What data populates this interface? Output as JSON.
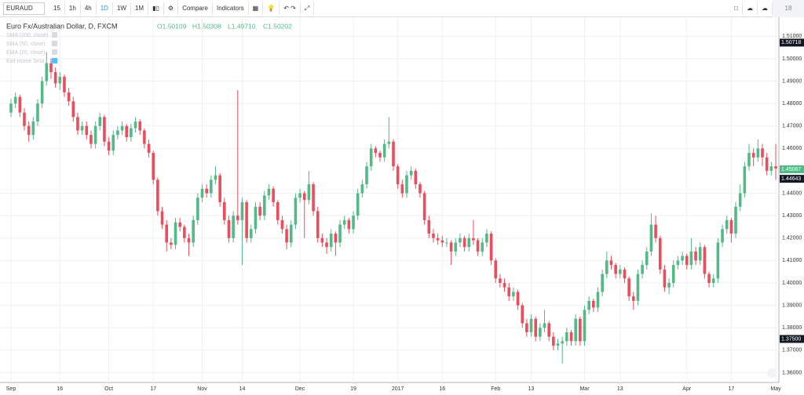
{
  "toolbar": {
    "symbol": "EURAUD",
    "intervals": [
      "15",
      "1h",
      "4h",
      "1D",
      "1W",
      "1M"
    ],
    "active_interval": "1D",
    "buttons": [
      "Compare",
      "Indicators"
    ],
    "right_text": "18"
  },
  "legend": {
    "title": "Euro Fx/Australian Dollar, D, FXCM",
    "ohlc": [
      "O1.50109",
      "H1.50308",
      "L1.49710",
      "C1.50202"
    ],
    "studies": [
      "SMA (200, close)",
      "SMA (50, close)",
      "EMA (20, close)",
      "Exit Home Sma"
    ]
  },
  "chart_data": {
    "type": "candlestick",
    "up_color": "#53b987",
    "down_color": "#eb4d5c",
    "grid": true,
    "ylim": [
      1.3556,
      1.5185
    ],
    "yticks": [
      {
        "value": 1.51,
        "label": "1.51000"
      },
      {
        "value": 1.5,
        "label": "1.50000"
      },
      {
        "value": 1.49,
        "label": "1.49000"
      },
      {
        "value": 1.48,
        "label": "1.48000"
      },
      {
        "value": 1.47,
        "label": "1.47000"
      },
      {
        "value": 1.46,
        "label": "1.46000"
      },
      {
        "value": 1.44,
        "label": "1.44000"
      },
      {
        "value": 1.43,
        "label": "1.43000"
      },
      {
        "value": 1.42,
        "label": "1.42000"
      },
      {
        "value": 1.41,
        "label": "1.41000"
      },
      {
        "value": 1.4,
        "label": "1.40000"
      },
      {
        "value": 1.39,
        "label": "1.39000"
      },
      {
        "value": 1.38,
        "label": "1.38000"
      },
      {
        "value": 1.37,
        "label": "1.37000"
      },
      {
        "value": 1.36,
        "label": "1.36000"
      }
    ],
    "price_markers": [
      {
        "value": 1.50718,
        "color": "#131722"
      },
      {
        "value": 1.45067,
        "color": "#53b987"
      },
      {
        "value": 1.44643,
        "color": "#131722"
      },
      {
        "value": 1.375,
        "label": "1.37500",
        "color": "#131722"
      }
    ],
    "categories": [
      "Sep",
      null,
      null,
      null,
      null,
      null,
      null,
      null,
      null,
      null,
      null,
      "16",
      null,
      null,
      null,
      null,
      null,
      null,
      null,
      null,
      null,
      null,
      "Oct",
      null,
      null,
      null,
      null,
      null,
      null,
      null,
      null,
      null,
      "17",
      null,
      null,
      null,
      null,
      null,
      null,
      null,
      null,
      null,
      null,
      "Nov",
      null,
      null,
      null,
      null,
      null,
      null,
      null,
      null,
      "14",
      null,
      null,
      null,
      null,
      null,
      null,
      null,
      null,
      null,
      null,
      null,
      null,
      "Dec",
      null,
      null,
      null,
      null,
      null,
      null,
      null,
      null,
      null,
      null,
      null,
      "19",
      null,
      null,
      null,
      null,
      null,
      null,
      null,
      null,
      null,
      "2017",
      null,
      null,
      null,
      null,
      null,
      null,
      null,
      null,
      null,
      "16",
      null,
      null,
      null,
      null,
      null,
      null,
      null,
      null,
      null,
      null,
      null,
      "Feb",
      null,
      null,
      null,
      null,
      null,
      null,
      null,
      "13",
      null,
      null,
      null,
      null,
      null,
      null,
      null,
      null,
      null,
      null,
      null,
      "Mar",
      null,
      null,
      null,
      null,
      null,
      null,
      null,
      "13",
      null,
      null,
      null,
      null,
      null,
      null,
      null,
      null,
      null,
      null,
      null,
      null,
      null,
      null,
      "Apr",
      null,
      null,
      null,
      null,
      null,
      null,
      null,
      null,
      null,
      "17",
      null,
      null,
      null,
      null,
      null,
      null,
      null,
      null,
      null,
      "May"
    ],
    "candles": [
      [
        1.476,
        1.482,
        1.474,
        1.48
      ],
      [
        1.48,
        1.485,
        1.478,
        1.483
      ],
      [
        1.483,
        1.484,
        1.474,
        1.476
      ],
      [
        1.476,
        1.478,
        1.468,
        1.47
      ],
      [
        1.47,
        1.472,
        1.463,
        1.466
      ],
      [
        1.466,
        1.474,
        1.464,
        1.472
      ],
      [
        1.472,
        1.482,
        1.47,
        1.48
      ],
      [
        1.48,
        1.492,
        1.478,
        1.49
      ],
      [
        1.49,
        1.503,
        1.488,
        1.498
      ],
      [
        1.498,
        1.5,
        1.491,
        1.494
      ],
      [
        1.494,
        1.496,
        1.487,
        1.489
      ],
      [
        1.489,
        1.494,
        1.486,
        1.492
      ],
      [
        1.492,
        1.493,
        1.483,
        1.485
      ],
      [
        1.485,
        1.487,
        1.479,
        1.481
      ],
      [
        1.481,
        1.483,
        1.472,
        1.474
      ],
      [
        1.474,
        1.476,
        1.466,
        1.468
      ],
      [
        1.468,
        1.472,
        1.466,
        1.47
      ],
      [
        1.47,
        1.472,
        1.464,
        1.466
      ],
      [
        1.466,
        1.468,
        1.46,
        1.462
      ],
      [
        1.462,
        1.472,
        1.46,
        1.47
      ],
      [
        1.47,
        1.476,
        1.468,
        1.474
      ],
      [
        1.474,
        1.475,
        1.461,
        1.463
      ],
      [
        1.463,
        1.465,
        1.457,
        1.459
      ],
      [
        1.459,
        1.468,
        1.457,
        1.466
      ],
      [
        1.466,
        1.47,
        1.464,
        1.468
      ],
      [
        1.468,
        1.472,
        1.466,
        1.47
      ],
      [
        1.47,
        1.471,
        1.463,
        1.465
      ],
      [
        1.465,
        1.471,
        1.463,
        1.469
      ],
      [
        1.469,
        1.474,
        1.467,
        1.472
      ],
      [
        1.472,
        1.473,
        1.466,
        1.468
      ],
      [
        1.468,
        1.469,
        1.46,
        1.462
      ],
      [
        1.462,
        1.464,
        1.456,
        1.458
      ],
      [
        1.458,
        1.459,
        1.444,
        1.446
      ],
      [
        1.446,
        1.447,
        1.43,
        1.432
      ],
      [
        1.432,
        1.434,
        1.424,
        1.426
      ],
      [
        1.426,
        1.428,
        1.414,
        1.418
      ],
      [
        1.418,
        1.42,
        1.415,
        1.417
      ],
      [
        1.417,
        1.429,
        1.415,
        1.427
      ],
      [
        1.427,
        1.429,
        1.423,
        1.425
      ],
      [
        1.425,
        1.426,
        1.418,
        1.42
      ],
      [
        1.42,
        1.422,
        1.412,
        1.418
      ],
      [
        1.418,
        1.43,
        1.416,
        1.428
      ],
      [
        1.428,
        1.44,
        1.426,
        1.438
      ],
      [
        1.438,
        1.444,
        1.436,
        1.442
      ],
      [
        1.442,
        1.444,
        1.438,
        1.44
      ],
      [
        1.44,
        1.448,
        1.438,
        1.446
      ],
      [
        1.446,
        1.452,
        1.444,
        1.448
      ],
      [
        1.448,
        1.449,
        1.434,
        1.436
      ],
      [
        1.436,
        1.438,
        1.426,
        1.428
      ],
      [
        1.428,
        1.43,
        1.418,
        1.42
      ],
      [
        1.42,
        1.432,
        1.418,
        1.43
      ],
      [
        1.43,
        1.486,
        1.426,
        1.428
      ],
      [
        1.428,
        1.438,
        1.408,
        1.436
      ],
      [
        1.436,
        1.437,
        1.418,
        1.42
      ],
      [
        1.42,
        1.426,
        1.418,
        1.424
      ],
      [
        1.424,
        1.436,
        1.422,
        1.434
      ],
      [
        1.434,
        1.436,
        1.428,
        1.43
      ],
      [
        1.43,
        1.441,
        1.428,
        1.439
      ],
      [
        1.439,
        1.444,
        1.437,
        1.442
      ],
      [
        1.442,
        1.443,
        1.434,
        1.436
      ],
      [
        1.436,
        1.437,
        1.426,
        1.428
      ],
      [
        1.428,
        1.43,
        1.422,
        1.424
      ],
      [
        1.424,
        1.426,
        1.415,
        1.418
      ],
      [
        1.418,
        1.428,
        1.416,
        1.426
      ],
      [
        1.426,
        1.44,
        1.424,
        1.438
      ],
      [
        1.438,
        1.442,
        1.436,
        1.44
      ],
      [
        1.44,
        1.441,
        1.42,
        1.437
      ],
      [
        1.437,
        1.45,
        1.435,
        1.444
      ],
      [
        1.444,
        1.445,
        1.43,
        1.432
      ],
      [
        1.432,
        1.434,
        1.418,
        1.42
      ],
      [
        1.42,
        1.422,
        1.416,
        1.418
      ],
      [
        1.418,
        1.42,
        1.413,
        1.416
      ],
      [
        1.416,
        1.424,
        1.414,
        1.422
      ],
      [
        1.422,
        1.423,
        1.412,
        1.418
      ],
      [
        1.418,
        1.428,
        1.416,
        1.426
      ],
      [
        1.426,
        1.43,
        1.424,
        1.428
      ],
      [
        1.428,
        1.429,
        1.422,
        1.424
      ],
      [
        1.424,
        1.432,
        1.422,
        1.43
      ],
      [
        1.43,
        1.442,
        1.428,
        1.44
      ],
      [
        1.44,
        1.446,
        1.438,
        1.444
      ],
      [
        1.444,
        1.454,
        1.442,
        1.452
      ],
      [
        1.452,
        1.462,
        1.45,
        1.46
      ],
      [
        1.46,
        1.461,
        1.456,
        1.458
      ],
      [
        1.458,
        1.459,
        1.454,
        1.456
      ],
      [
        1.456,
        1.464,
        1.454,
        1.462
      ],
      [
        1.462,
        1.474,
        1.46,
        1.463
      ],
      [
        1.463,
        1.464,
        1.45,
        1.452
      ],
      [
        1.452,
        1.453,
        1.442,
        1.444
      ],
      [
        1.444,
        1.446,
        1.438,
        1.44
      ],
      [
        1.44,
        1.45,
        1.438,
        1.448
      ],
      [
        1.448,
        1.452,
        1.446,
        1.45
      ],
      [
        1.45,
        1.451,
        1.442,
        1.444
      ],
      [
        1.444,
        1.445,
        1.438,
        1.44
      ],
      [
        1.44,
        1.441,
        1.426,
        1.428
      ],
      [
        1.428,
        1.43,
        1.42,
        1.422
      ],
      [
        1.422,
        1.424,
        1.418,
        1.42
      ],
      [
        1.42,
        1.422,
        1.417,
        1.419
      ],
      [
        1.419,
        1.421,
        1.416,
        1.418
      ],
      [
        1.418,
        1.42,
        1.416,
        1.418
      ],
      [
        1.418,
        1.419,
        1.408,
        1.414
      ],
      [
        1.414,
        1.42,
        1.412,
        1.418
      ],
      [
        1.418,
        1.422,
        1.416,
        1.42
      ],
      [
        1.42,
        1.421,
        1.414,
        1.416
      ],
      [
        1.416,
        1.422,
        1.414,
        1.42
      ],
      [
        1.42,
        1.428,
        1.417,
        1.419
      ],
      [
        1.419,
        1.42,
        1.412,
        1.414
      ],
      [
        1.414,
        1.42,
        1.412,
        1.418
      ],
      [
        1.418,
        1.424,
        1.416,
        1.422
      ],
      [
        1.422,
        1.423,
        1.408,
        1.41
      ],
      [
        1.41,
        1.411,
        1.4,
        1.402
      ],
      [
        1.402,
        1.404,
        1.398,
        1.4
      ],
      [
        1.4,
        1.402,
        1.396,
        1.398
      ],
      [
        1.398,
        1.4,
        1.392,
        1.394
      ],
      [
        1.394,
        1.398,
        1.392,
        1.396
      ],
      [
        1.396,
        1.397,
        1.388,
        1.39
      ],
      [
        1.39,
        1.391,
        1.38,
        1.382
      ],
      [
        1.382,
        1.384,
        1.376,
        1.378
      ],
      [
        1.378,
        1.386,
        1.376,
        1.384
      ],
      [
        1.384,
        1.385,
        1.374,
        1.376
      ],
      [
        1.376,
        1.382,
        1.374,
        1.38
      ],
      [
        1.38,
        1.388,
        1.378,
        1.382
      ],
      [
        1.382,
        1.383,
        1.374,
        1.376
      ],
      [
        1.376,
        1.378,
        1.37,
        1.372
      ],
      [
        1.372,
        1.375,
        1.37,
        1.373
      ],
      [
        1.373,
        1.376,
        1.364,
        1.374
      ],
      [
        1.374,
        1.38,
        1.372,
        1.378
      ],
      [
        1.378,
        1.379,
        1.372,
        1.374
      ],
      [
        1.374,
        1.386,
        1.372,
        1.384
      ],
      [
        1.384,
        1.385,
        1.372,
        1.374
      ],
      [
        1.374,
        1.39,
        1.372,
        1.388
      ],
      [
        1.388,
        1.394,
        1.386,
        1.392
      ],
      [
        1.392,
        1.393,
        1.387,
        1.389
      ],
      [
        1.389,
        1.398,
        1.387,
        1.396
      ],
      [
        1.396,
        1.406,
        1.394,
        1.404
      ],
      [
        1.404,
        1.414,
        1.402,
        1.41
      ],
      [
        1.41,
        1.412,
        1.406,
        1.408
      ],
      [
        1.408,
        1.409,
        1.402,
        1.404
      ],
      [
        1.404,
        1.408,
        1.402,
        1.406
      ],
      [
        1.406,
        1.407,
        1.4,
        1.402
      ],
      [
        1.402,
        1.403,
        1.392,
        1.394
      ],
      [
        1.394,
        1.396,
        1.388,
        1.392
      ],
      [
        1.392,
        1.406,
        1.39,
        1.404
      ],
      [
        1.404,
        1.41,
        1.402,
        1.408
      ],
      [
        1.408,
        1.416,
        1.406,
        1.414
      ],
      [
        1.414,
        1.431,
        1.412,
        1.426
      ],
      [
        1.426,
        1.43,
        1.418,
        1.42
      ],
      [
        1.42,
        1.421,
        1.404,
        1.406
      ],
      [
        1.406,
        1.408,
        1.396,
        1.398
      ],
      [
        1.398,
        1.402,
        1.395,
        1.4
      ],
      [
        1.4,
        1.41,
        1.398,
        1.408
      ],
      [
        1.408,
        1.412,
        1.406,
        1.41
      ],
      [
        1.41,
        1.414,
        1.408,
        1.412
      ],
      [
        1.412,
        1.413,
        1.406,
        1.408
      ],
      [
        1.408,
        1.42,
        1.406,
        1.414
      ],
      [
        1.414,
        1.416,
        1.408,
        1.41
      ],
      [
        1.41,
        1.418,
        1.408,
        1.416
      ],
      [
        1.416,
        1.417,
        1.402,
        1.404
      ],
      [
        1.404,
        1.405,
        1.398,
        1.4
      ],
      [
        1.4,
        1.404,
        1.398,
        1.402
      ],
      [
        1.402,
        1.42,
        1.4,
        1.418
      ],
      [
        1.418,
        1.426,
        1.416,
        1.424
      ],
      [
        1.424,
        1.43,
        1.422,
        1.428
      ],
      [
        1.428,
        1.429,
        1.418,
        1.422
      ],
      [
        1.422,
        1.436,
        1.42,
        1.434
      ],
      [
        1.434,
        1.444,
        1.432,
        1.44
      ],
      [
        1.44,
        1.454,
        1.438,
        1.452
      ],
      [
        1.452,
        1.462,
        1.45,
        1.458
      ],
      [
        1.458,
        1.46,
        1.452,
        1.456
      ],
      [
        1.456,
        1.464,
        1.454,
        1.46
      ],
      [
        1.46,
        1.462,
        1.452,
        1.456
      ],
      [
        1.456,
        1.458,
        1.448,
        1.45
      ],
      [
        1.45,
        1.454,
        1.448,
        1.452
      ],
      [
        1.452,
        1.462,
        1.446,
        1.451
      ]
    ]
  }
}
